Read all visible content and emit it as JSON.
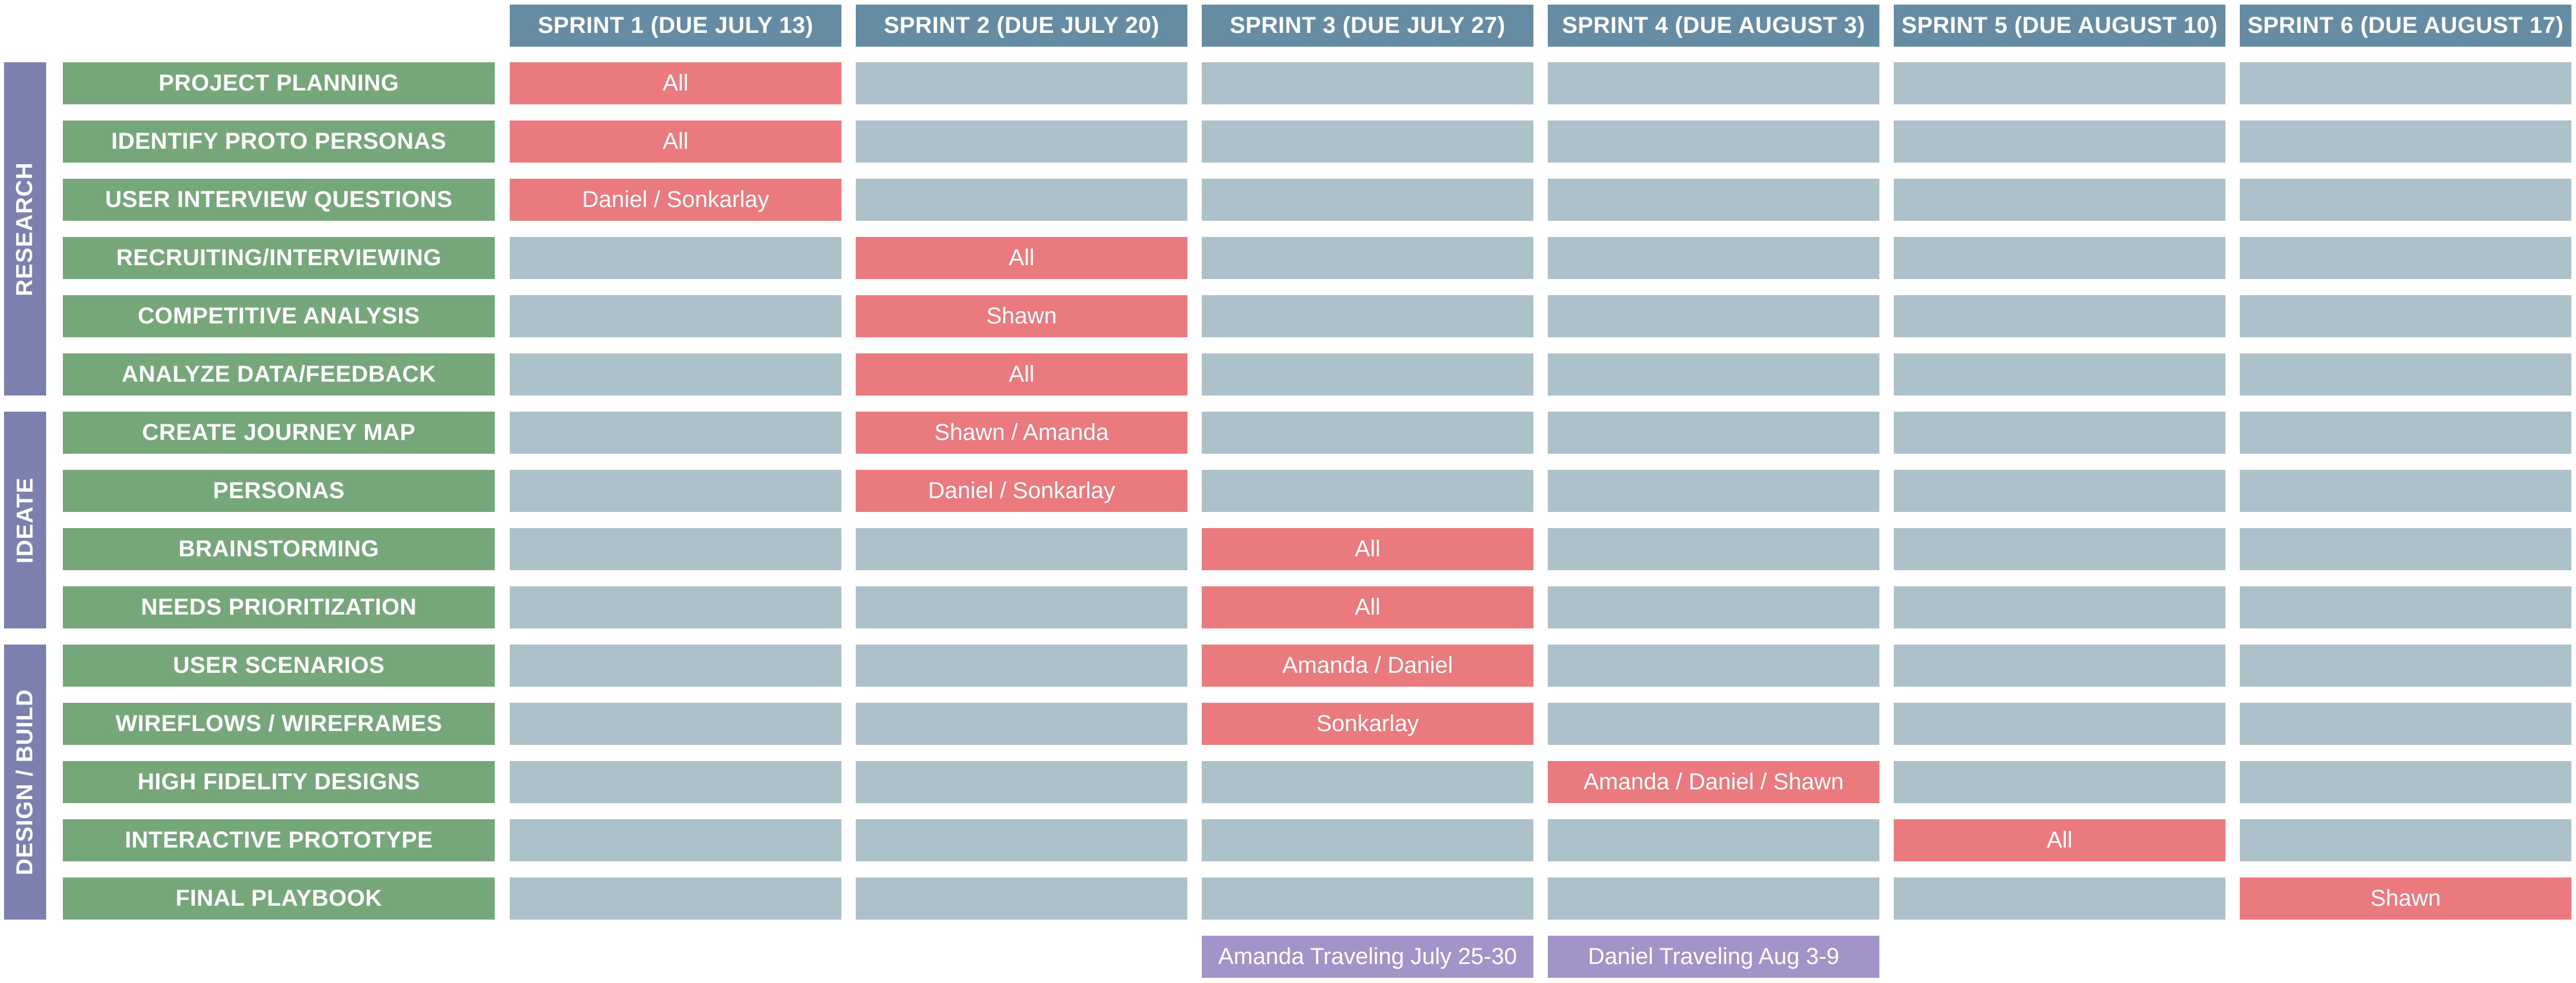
{
  "sprints": [
    "SPRINT 1 (DUE JULY 13)",
    "SPRINT 2 (DUE JULY 20)",
    "SPRINT 3 (DUE JULY 27)",
    "SPRINT 4 (DUE AUGUST 3)",
    "SPRINT 5 (DUE AUGUST 10)",
    "SPRINT 6 (DUE AUGUST 17)"
  ],
  "phases": [
    {
      "label": "RESEARCH",
      "first_task": 0,
      "task_count": 6
    },
    {
      "label": "IDEATE",
      "first_task": 6,
      "task_count": 4
    },
    {
      "label": "DESIGN / BUILD",
      "first_task": 10,
      "task_count": 5
    }
  ],
  "tasks": [
    {
      "label": "PROJECT PLANNING",
      "sprint": 1,
      "assignee": "All"
    },
    {
      "label": "IDENTIFY PROTO PERSONAS",
      "sprint": 1,
      "assignee": "All"
    },
    {
      "label": "USER INTERVIEW QUESTIONS",
      "sprint": 1,
      "assignee": "Daniel / Sonkarlay"
    },
    {
      "label": "RECRUITING/INTERVIEWING",
      "sprint": 2,
      "assignee": "All"
    },
    {
      "label": "COMPETITIVE ANALYSIS",
      "sprint": 2,
      "assignee": "Shawn"
    },
    {
      "label": "ANALYZE DATA/FEEDBACK",
      "sprint": 2,
      "assignee": "All"
    },
    {
      "label": "CREATE JOURNEY MAP",
      "sprint": 2,
      "assignee": "Shawn / Amanda"
    },
    {
      "label": "PERSONAS",
      "sprint": 2,
      "assignee": "Daniel / Sonkarlay"
    },
    {
      "label": "BRAINSTORMING",
      "sprint": 3,
      "assignee": "All"
    },
    {
      "label": "NEEDS PRIORITIZATION",
      "sprint": 3,
      "assignee": "All"
    },
    {
      "label": "USER SCENARIOS",
      "sprint": 3,
      "assignee": "Amanda / Daniel"
    },
    {
      "label": "WIREFLOWS / WIREFRAMES",
      "sprint": 3,
      "assignee": "Sonkarlay"
    },
    {
      "label": "HIGH FIDELITY DESIGNS",
      "sprint": 4,
      "assignee": "Amanda / Daniel / Shawn"
    },
    {
      "label": "INTERACTIVE PROTOTYPE",
      "sprint": 5,
      "assignee": "All"
    },
    {
      "label": "FINAL PLAYBOOK",
      "sprint": 6,
      "assignee": "Shawn"
    }
  ],
  "notes": [
    {
      "sprint": 3,
      "text": "Amanda Traveling July 25-30"
    },
    {
      "sprint": 4,
      "text": "Daniel Traveling Aug 3-9"
    }
  ],
  "colors": {
    "sprint_header": "#668ca3",
    "phase": "#7b80ae",
    "task_label": "#76a77b",
    "empty_cell": "#adc1cb",
    "assigned_cell": "#ea7a7d",
    "note_cell": "#a293c9",
    "text": "#ffffff"
  }
}
